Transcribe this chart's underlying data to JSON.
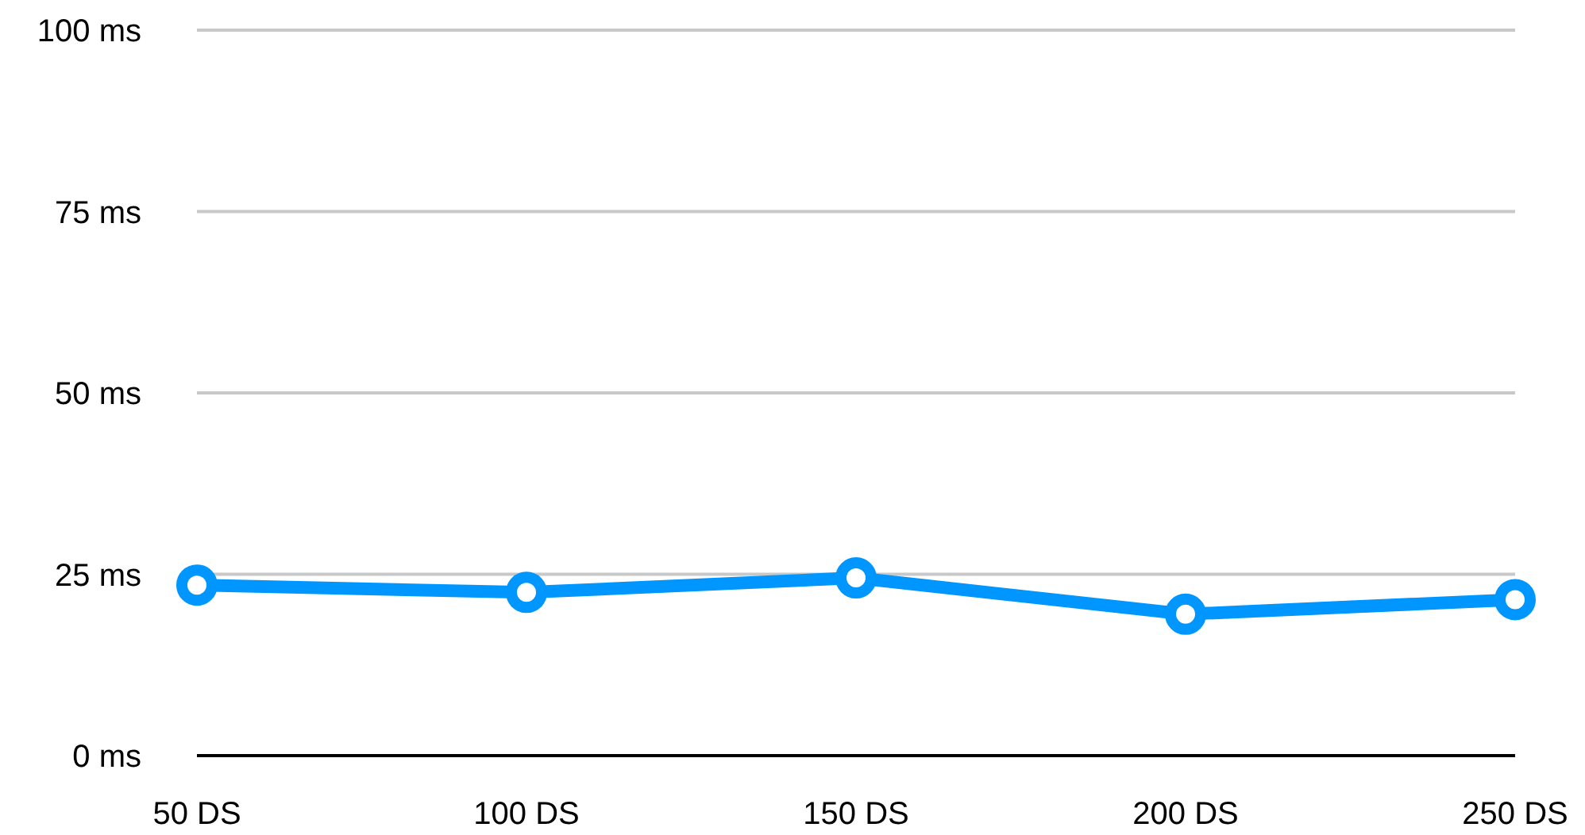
{
  "chart_data": {
    "type": "line",
    "categories": [
      "50 DS",
      "100 DS",
      "150 DS",
      "200 DS",
      "250 DS"
    ],
    "series": [
      {
        "color": "#0096ff",
        "values": [
          23.5,
          22.5,
          24.5,
          19.5,
          21.5
        ]
      }
    ],
    "ylim": [
      0,
      100
    ],
    "yticks": [
      {
        "value": 0,
        "label": "0 ms"
      },
      {
        "value": 25,
        "label": "25 ms"
      },
      {
        "value": 50,
        "label": "50 ms"
      },
      {
        "value": 75,
        "label": "75 ms"
      },
      {
        "value": 100,
        "label": "100 ms"
      }
    ],
    "grid": "y",
    "marker": "circle",
    "line_style": "solid"
  }
}
